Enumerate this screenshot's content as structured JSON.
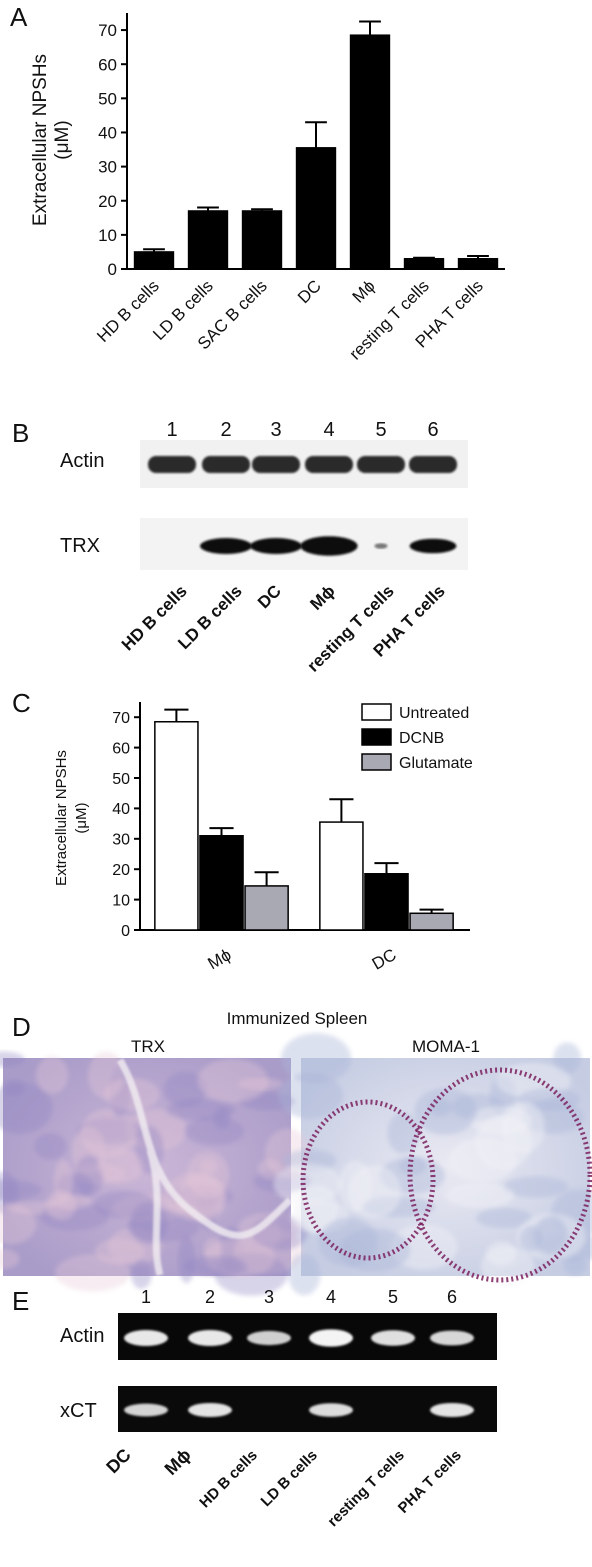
{
  "chart_data": [
    {
      "type": "bar",
      "panel": "A",
      "ylabel": [
        "Extracellular NPSHs",
        "(μM)"
      ],
      "categories": [
        "HD B cells",
        "LD B cells",
        "SAC B cells",
        "DC",
        "Mϕ",
        "resting T cells",
        "PHA T cells"
      ],
      "values": [
        5,
        17,
        17,
        35.5,
        68.5,
        3,
        3
      ],
      "errors": [
        0.8,
        1,
        0.5,
        7.5,
        4,
        0.3,
        0.8
      ],
      "color": "#000000",
      "ylim": [
        0,
        75
      ],
      "yticks": [
        0,
        10,
        20,
        30,
        40,
        50,
        60,
        70
      ]
    },
    {
      "type": "bar",
      "panel": "C",
      "ylabel": [
        "Extracellular NPSHs",
        "(μM)"
      ],
      "categories": [
        "Mϕ",
        "DC"
      ],
      "series": [
        {
          "name": "Untreated",
          "color": "#ffffff",
          "values": [
            68.5,
            35.5
          ],
          "errors": [
            4,
            7.5
          ]
        },
        {
          "name": "DCNB",
          "color": "#000000",
          "values": [
            31,
            18.5
          ],
          "errors": [
            2.5,
            3.5
          ]
        },
        {
          "name": "Glutamate",
          "color": "#a9a9b4",
          "values": [
            14.5,
            5.5
          ],
          "errors": [
            4.5,
            1.2
          ]
        }
      ],
      "ylim": [
        0,
        75
      ],
      "yticks": [
        0,
        10,
        20,
        30,
        40,
        50,
        60,
        70
      ],
      "legend": "upper right"
    }
  ],
  "panel_b": {
    "letter": "B",
    "lanes": [
      "1",
      "2",
      "3",
      "4",
      "5",
      "6"
    ],
    "rows": [
      "Actin",
      "TRX"
    ],
    "labels": [
      "HD B cells",
      "LD B cells",
      "DC",
      "Mϕ",
      "resting T cells",
      "PHA T cells"
    ]
  },
  "panel_d": {
    "letter": "D",
    "title": "Immunized Spleen",
    "images": [
      "TRX",
      "MOMA-1"
    ]
  },
  "panel_e": {
    "letter": "E",
    "lanes": [
      "1",
      "2",
      "3",
      "4",
      "5",
      "6"
    ],
    "rows": [
      "Actin",
      "xCT"
    ],
    "labels": [
      "DC",
      "Mϕ",
      "HD B cells",
      "LD B cells",
      "resting T cells",
      "PHA T cells"
    ]
  }
}
